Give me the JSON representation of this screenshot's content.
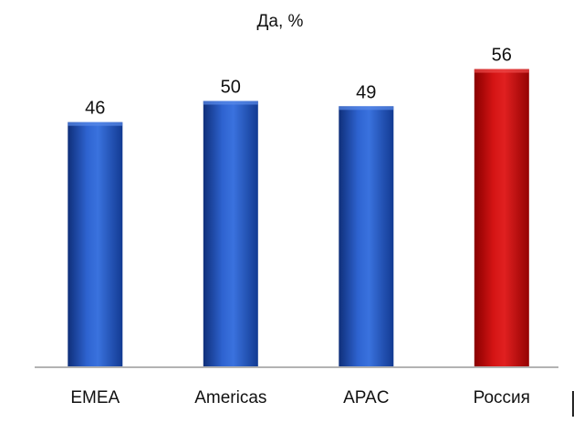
{
  "chart_data": {
    "type": "bar",
    "title": "Да, %",
    "categories": [
      "EMEA",
      "Americas",
      "APAC",
      "Россия"
    ],
    "values": [
      46,
      50,
      49,
      56
    ],
    "value_labels": [
      "46",
      "50",
      "49",
      "56"
    ],
    "ylim": [
      0,
      58
    ],
    "grid": false,
    "legend": "none",
    "colors": {
      "default_bar": "#1f4fb5",
      "highlight_bar": "#c40a0a",
      "highlight_category": "Россия",
      "axis": "#999999"
    }
  }
}
